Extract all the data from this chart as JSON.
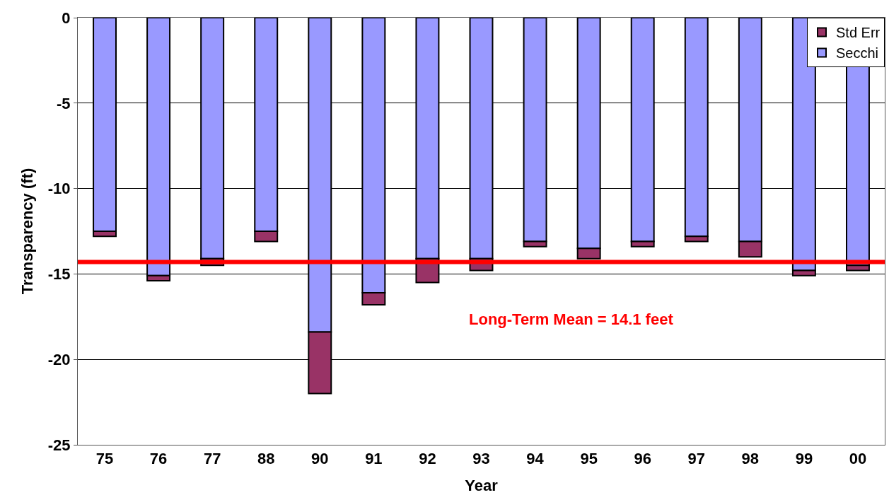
{
  "chart_data": {
    "type": "bar",
    "stacked": true,
    "xlabel": "Year",
    "ylabel": "Transparency (ft)",
    "categories": [
      "75",
      "76",
      "77",
      "88",
      "90",
      "91",
      "92",
      "93",
      "94",
      "95",
      "96",
      "97",
      "98",
      "99",
      "00"
    ],
    "series": [
      {
        "name": "Secchi",
        "color": "#9999ff",
        "values": [
          -12.5,
          -15.1,
          -14.1,
          -12.5,
          -18.4,
          -16.1,
          -14.1,
          -14.1,
          -13.1,
          -13.5,
          -13.1,
          -12.8,
          -13.1,
          -14.8,
          -14.5
        ]
      },
      {
        "name": "Std Err",
        "color": "#993366",
        "values": [
          -0.3,
          -0.3,
          -0.4,
          -0.6,
          -3.6,
          -0.7,
          -1.4,
          -0.7,
          -0.3,
          -0.6,
          -0.3,
          -0.3,
          -0.9,
          -0.3,
          -0.3
        ]
      }
    ],
    "ylim": [
      -25,
      0
    ],
    "yticks": [
      0,
      -5,
      -10,
      -15,
      -20,
      -25
    ],
    "grid": "y",
    "legend": "top right",
    "ref_lines": [
      {
        "axis": "y",
        "value": -14.3,
        "color": "#ff0000"
      }
    ],
    "annotations": [
      "Long-Term Mean = 14.1 feet"
    ]
  }
}
